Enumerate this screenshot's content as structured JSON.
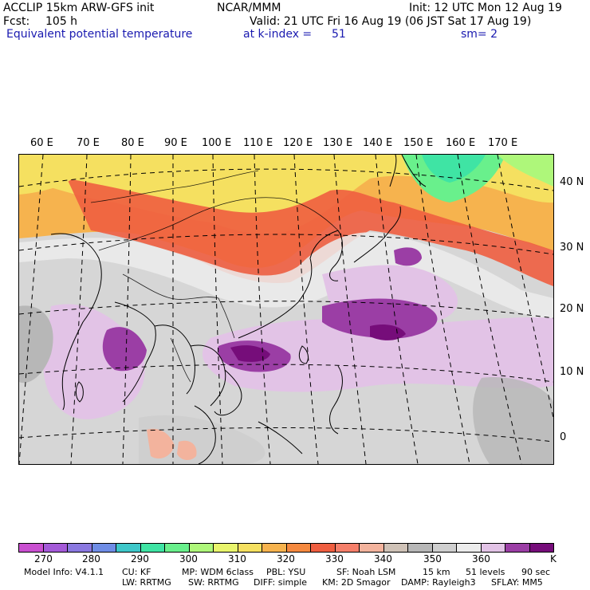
{
  "header": {
    "model": "ACCLIP 15km ARW-GFS init",
    "org": "NCAR/MMM",
    "init": "Init: 12 UTC Mon 12 Aug 19",
    "fcst_label": "Fcst:",
    "fcst_value": "105 h",
    "valid": "Valid: 21 UTC Fri 16 Aug 19 (06 JST Sat 17 Aug 19)",
    "field": "Equivalent potential temperature",
    "level": "at k-index =",
    "level_value": "51",
    "smooth": "sm= 2"
  },
  "map": {
    "longitude_labels": [
      "60 E",
      "70 E",
      "80 E",
      "90 E",
      "100 E",
      "110 E",
      "120 E",
      "130 E",
      "140 E",
      "150 E",
      "160 E",
      "170 E"
    ],
    "latitude_labels": [
      "40 N",
      "30 N",
      "20 N",
      "10 N",
      "0"
    ]
  },
  "colorbar": {
    "unit": "K",
    "labels": [
      "270",
      "280",
      "290",
      "300",
      "310",
      "320",
      "330",
      "340",
      "350",
      "360"
    ],
    "colors": [
      "#c94fd0",
      "#a45ad8",
      "#8a78e0",
      "#6f8de6",
      "#3ec7c9",
      "#3fe4a4",
      "#69f08c",
      "#aef77a",
      "#e9f56c",
      "#f5e060",
      "#f6b34e",
      "#f5893f",
      "#ef5e40",
      "#f57f6a",
      "#f3b39d",
      "#cfc2b7",
      "#b7b7b7",
      "#cfcfcf",
      "#ececec",
      "#e2c3e6",
      "#9b3ea5",
      "#760d7a"
    ]
  },
  "model_info": {
    "line1": [
      "Model Info: V4.1.1",
      "CU: KF",
      "MP: WDM 6class",
      "PBL: YSU",
      "SF: Noah LSM",
      "15 km",
      "51 levels",
      "90 sec"
    ],
    "line2": [
      "LW: RRTMG",
      "SW: RRTMG",
      "DIFF: simple",
      "KM: 2D Smagor",
      "DAMP: Rayleigh3",
      "SFLAY: MM5"
    ]
  }
}
